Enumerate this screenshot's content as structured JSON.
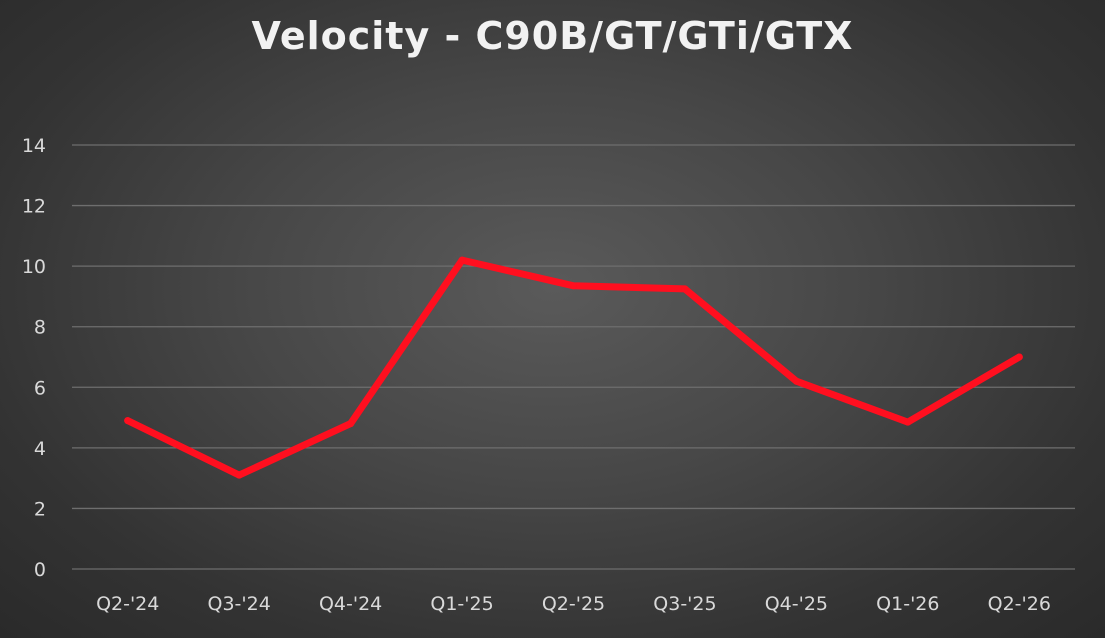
{
  "chart_data": {
    "type": "line",
    "title": "Velocity - C90B/GT/GTi/GTX",
    "xlabel": "",
    "ylabel": "",
    "categories": [
      "Q2-'24",
      "Q3-'24",
      "Q4-'24",
      "Q1-'25",
      "Q2-'25",
      "Q3-'25",
      "Q4-'25",
      "Q1-'26",
      "Q2-'26"
    ],
    "series": [
      {
        "values": [
          4.9,
          3.1,
          4.8,
          10.2,
          9.35,
          9.25,
          6.2,
          4.85,
          7.0
        ],
        "color": "#ff0f1f"
      }
    ],
    "ylim": [
      0,
      14
    ],
    "yticks": [
      0,
      2,
      4,
      6,
      8,
      10,
      12,
      14
    ],
    "grid": true,
    "legend": "none"
  },
  "colors": {
    "background": "#474747",
    "gridline": "#6e6e6e",
    "text": "#d9d9d9",
    "title": "#f2f2f2"
  }
}
